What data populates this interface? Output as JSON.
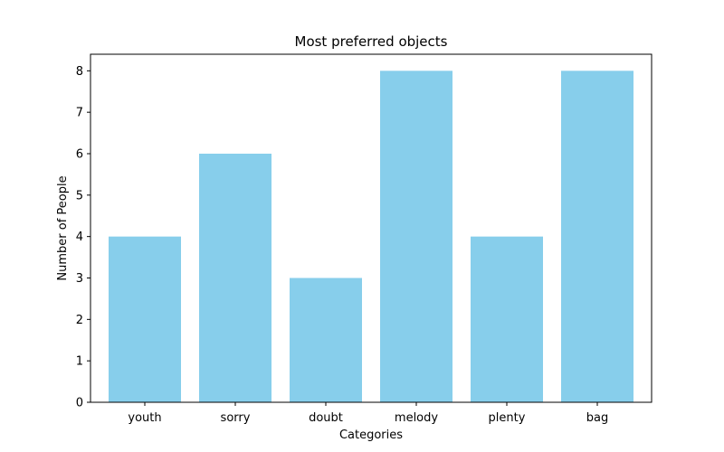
{
  "chart_data": {
    "type": "bar",
    "title": "Most preferred objects",
    "xlabel": "Categories",
    "ylabel": "Number of People",
    "categories": [
      "youth",
      "sorry",
      "doubt",
      "melody",
      "plenty",
      "bag"
    ],
    "values": [
      4,
      6,
      3,
      8,
      4,
      8
    ],
    "yticks": [
      "0",
      "1",
      "2",
      "3",
      "4",
      "5",
      "6",
      "7",
      "8"
    ],
    "ylim": [
      0,
      8.4
    ],
    "grid": false,
    "legend": "none",
    "bar_color": "#87CEEB"
  }
}
